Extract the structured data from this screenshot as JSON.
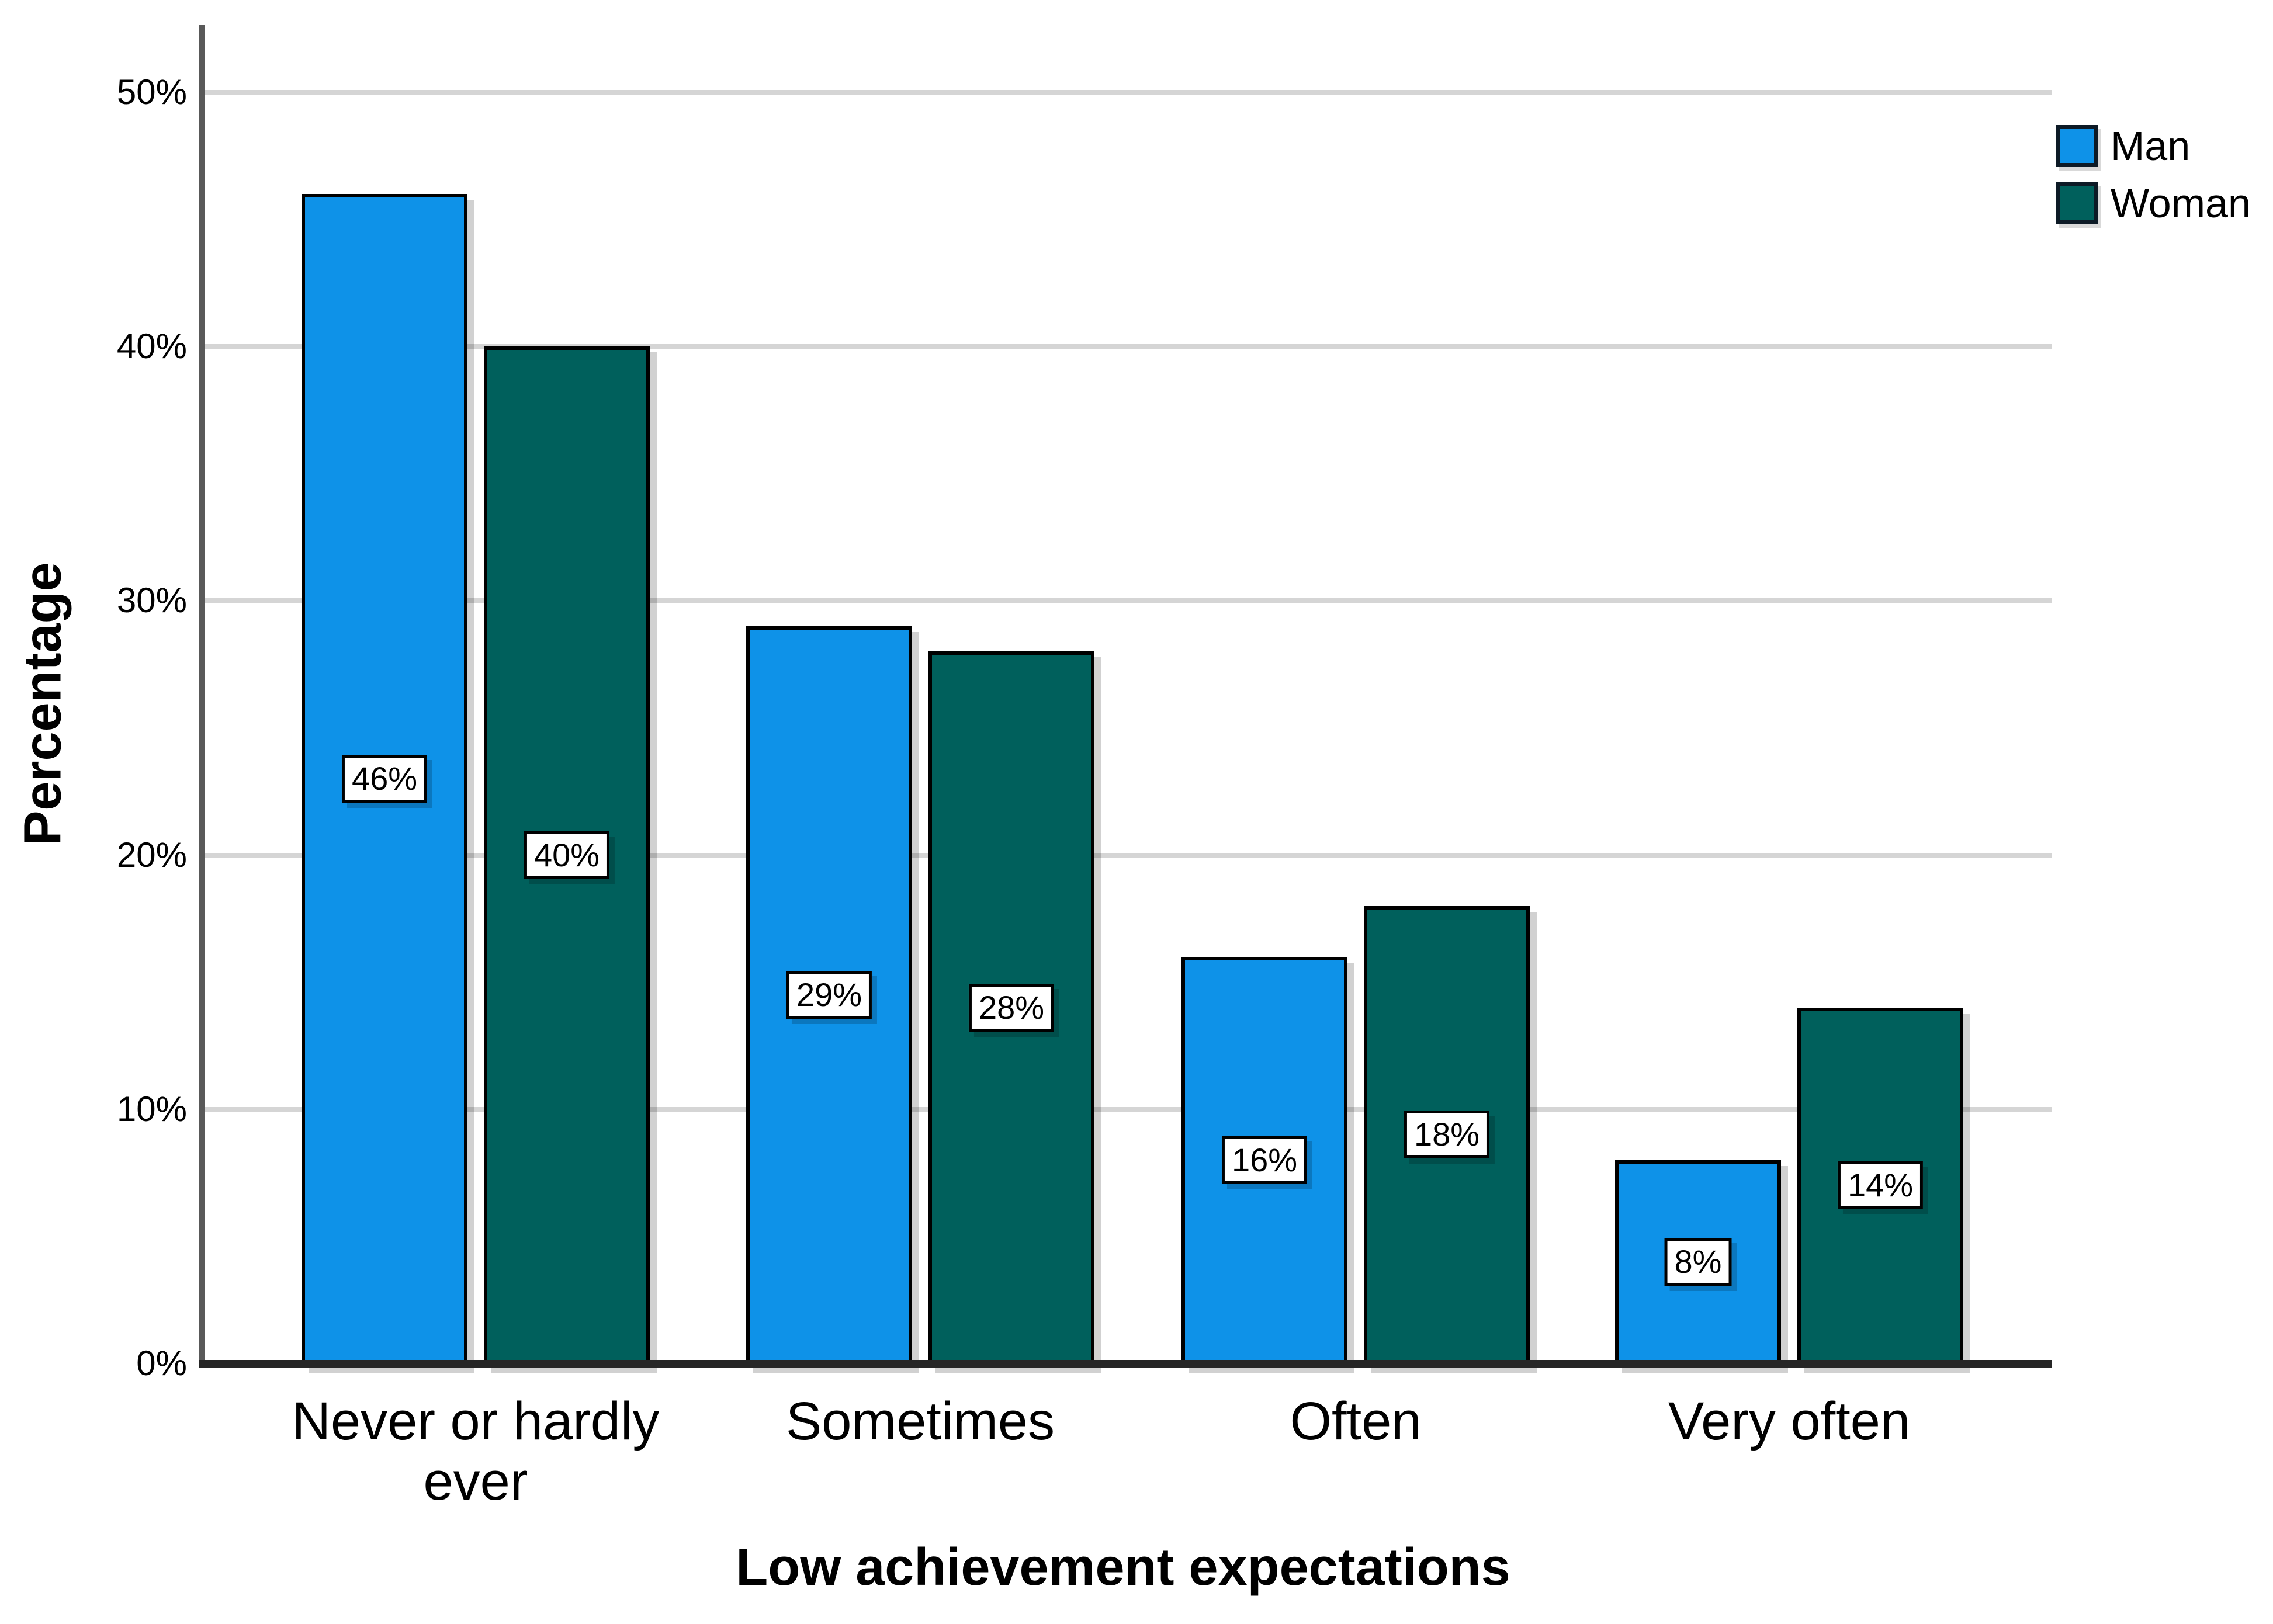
{
  "chart_data": {
    "type": "bar",
    "title": "",
    "categories": [
      "Never or hardly ever",
      "Sometimes",
      "Often",
      "Very often"
    ],
    "series": [
      {
        "name": "Man",
        "color": "#0E92E8",
        "values": [
          46,
          29,
          16,
          8
        ],
        "labels": [
          "46%",
          "29%",
          "16%",
          "8%"
        ]
      },
      {
        "name": "Woman",
        "color": "#00605C",
        "values": [
          40,
          28,
          18,
          14
        ],
        "labels": [
          "40%",
          "28%",
          "18%",
          "14%"
        ]
      }
    ],
    "xlabel": "Low achievement expectations",
    "ylabel": "Percentage",
    "y_ticks": [
      {
        "value": 0,
        "label": "0%"
      },
      {
        "value": 10,
        "label": "10%"
      },
      {
        "value": 20,
        "label": "20%"
      },
      {
        "value": 30,
        "label": "30%"
      },
      {
        "value": 40,
        "label": "40%"
      },
      {
        "value": 50,
        "label": "50%"
      }
    ],
    "ylim": [
      0,
      52.7
    ],
    "grid": true,
    "gridline_color": "#d5d5d5",
    "legend_position": "top-right",
    "value_label_style": {
      "background": "#ffffff",
      "border": "#000000"
    },
    "axis_colors": {
      "y_axis": "#595959",
      "x_axis": "#262626"
    }
  }
}
